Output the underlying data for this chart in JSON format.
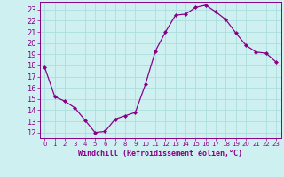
{
  "x": [
    0,
    1,
    2,
    3,
    4,
    5,
    6,
    7,
    8,
    9,
    10,
    11,
    12,
    13,
    14,
    15,
    16,
    17,
    18,
    19,
    20,
    21,
    22,
    23
  ],
  "y": [
    17.8,
    15.2,
    14.8,
    14.2,
    13.1,
    12.0,
    12.1,
    13.2,
    13.5,
    13.8,
    16.3,
    19.3,
    21.0,
    22.5,
    22.6,
    23.2,
    23.4,
    22.8,
    22.1,
    20.9,
    19.8,
    19.2,
    19.1,
    18.3
  ],
  "line_color": "#880088",
  "marker": "D",
  "marker_size": 2,
  "bg_color": "#cff0f0",
  "grid_color": "#aadddd",
  "xlabel": "Windchill (Refroidissement éolien,°C)",
  "tick_color": "#880088",
  "ylim": [
    11.5,
    23.7
  ],
  "xlim": [
    -0.5,
    23.5
  ],
  "yticks": [
    12,
    13,
    14,
    15,
    16,
    17,
    18,
    19,
    20,
    21,
    22,
    23
  ],
  "xticks": [
    0,
    1,
    2,
    3,
    4,
    5,
    6,
    7,
    8,
    9,
    10,
    11,
    12,
    13,
    14,
    15,
    16,
    17,
    18,
    19,
    20,
    21,
    22,
    23
  ]
}
